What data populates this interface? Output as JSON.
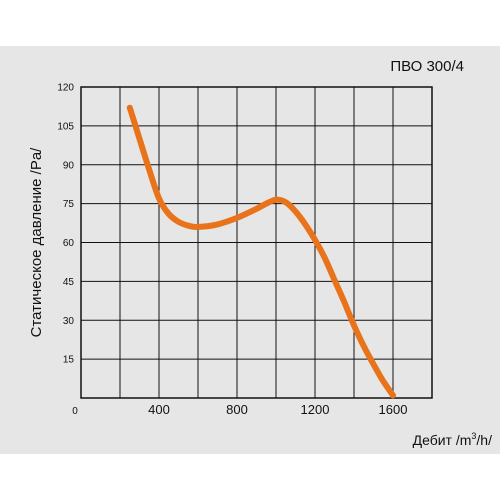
{
  "chart_data": {
    "type": "line",
    "title": "ПВО 300/4",
    "xlabel": "Дебит /m³/h/",
    "xlabel_parts": {
      "pre": "Дебит /m",
      "sup": "3",
      "post": "/h/"
    },
    "ylabel": "Статическое давление /Pa/",
    "xlim": [
      0,
      1800
    ],
    "ylim": [
      0,
      120
    ],
    "x_ticks": [
      0,
      400,
      800,
      1200,
      1600
    ],
    "x_tick_labels": [
      "0",
      "400",
      "800",
      "1200",
      "1600"
    ],
    "y_ticks": [
      15,
      30,
      45,
      60,
      75,
      90,
      105,
      120
    ],
    "y_tick_labels": [
      "15",
      "30",
      "45",
      "60",
      "75",
      "90",
      "105",
      "120"
    ],
    "grid": true,
    "series": [
      {
        "color": "#e8731a",
        "x": [
          250,
          300,
          350,
          400,
          450,
          500,
          550,
          600,
          700,
          800,
          900,
          950,
          1000,
          1050,
          1100,
          1150,
          1200,
          1250,
          1300,
          1350,
          1400,
          1450,
          1500,
          1550,
          1600
        ],
        "y": [
          112,
          100,
          88,
          77,
          71,
          68,
          66.5,
          66,
          67,
          69.5,
          73,
          75,
          76.5,
          75.5,
          72,
          67,
          61,
          54,
          45.5,
          37,
          28,
          20,
          13,
          6.5,
          1
        ]
      }
    ]
  }
}
